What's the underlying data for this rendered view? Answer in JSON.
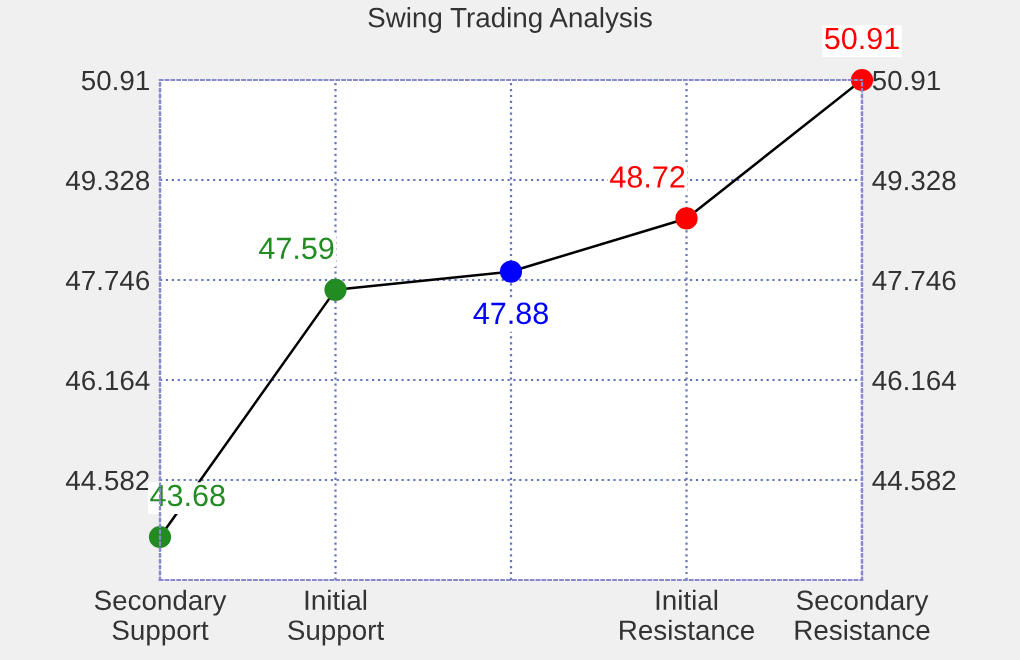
{
  "chart_data": {
    "type": "line",
    "title": "Swing Trading Analysis",
    "categories": [
      "Secondary\nSupport",
      "Initial\nSupport",
      null,
      "Initial\nResistance",
      "Secondary\nResistance"
    ],
    "series": [
      {
        "color": "#000000",
        "values": [
          43.68,
          47.59,
          47.88,
          48.72,
          50.91
        ],
        "colors": [
          "#228b22",
          "#228b22",
          "#0000ff",
          "#ff0000",
          "#ff0000"
        ],
        "value_labels": [
          "43.68",
          "47.59",
          "47.88",
          "48.72",
          "50.91"
        ]
      }
    ],
    "ylim": [
      43,
      50.91
    ],
    "yticks": [
      44.582,
      46.164,
      47.746,
      49.328,
      50.91
    ],
    "y2lim": [
      43,
      50.91
    ],
    "y2ticks": [
      44.582,
      46.164,
      47.746,
      49.328,
      50.91
    ],
    "grid": true,
    "marker": "circle",
    "line_style": "solid"
  }
}
